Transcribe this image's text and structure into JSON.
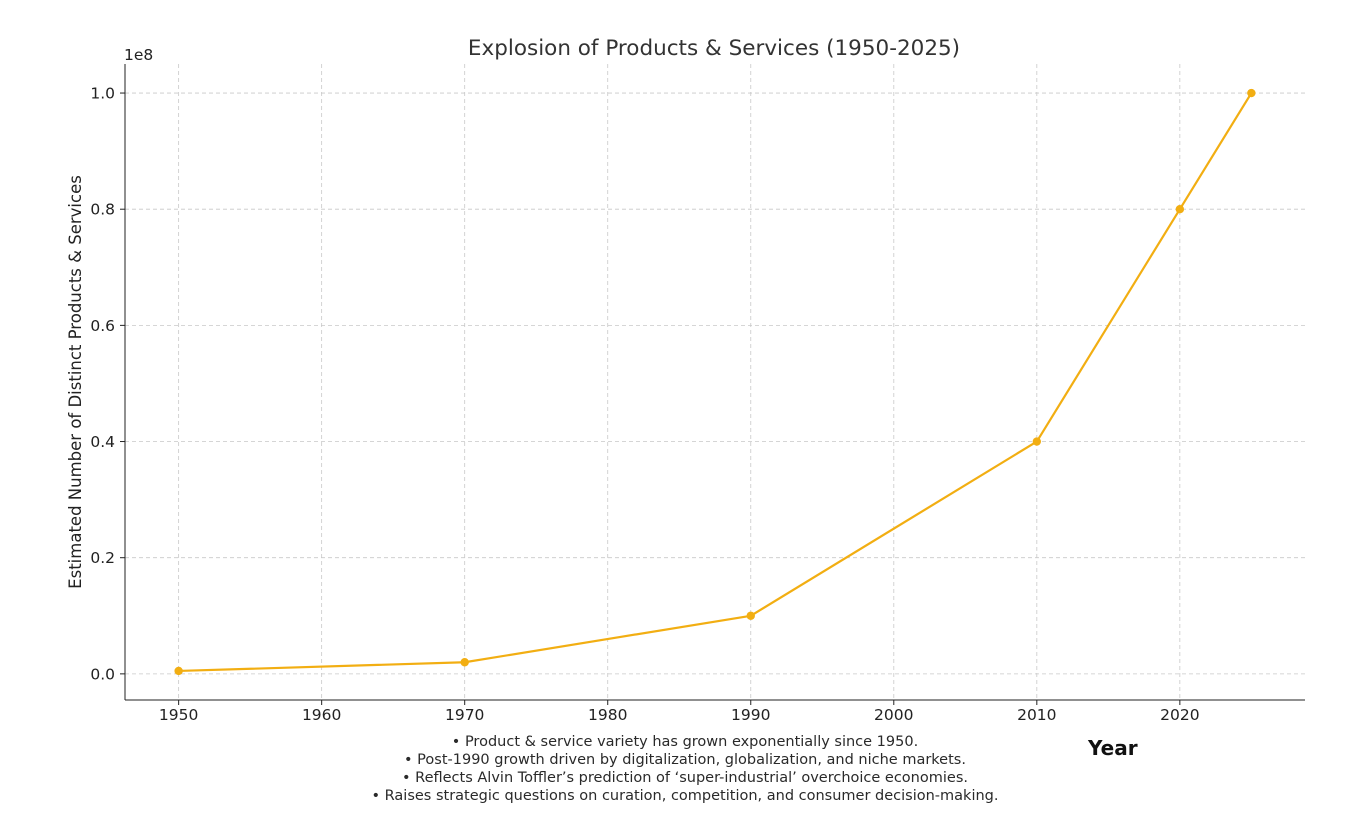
{
  "chart_data": {
    "type": "line",
    "title": "Explosion of Products & Services (1950-2025)",
    "xlabel": "",
    "ylabel": "Estimated Number of Distinct Products & Services",
    "y_offset_label": "1e8",
    "x": [
      1950,
      1970,
      1990,
      2010,
      2020,
      2025
    ],
    "series": [
      {
        "name": "Products & Services",
        "values": [
          500000,
          2000000,
          10000000,
          40000000,
          80000000,
          100000000
        ]
      }
    ],
    "xlim": [
      1946.25,
      2028.75
    ],
    "ylim": [
      -4500000,
      105000000
    ],
    "x_ticks": [
      1950,
      1960,
      1970,
      1980,
      1990,
      2000,
      2010,
      2020
    ],
    "x_tick_labels": [
      "1950",
      "1960",
      "1970",
      "1980",
      "1990",
      "2000",
      "2010",
      "2020"
    ],
    "y_ticks": [
      0,
      20000000,
      40000000,
      60000000,
      80000000,
      100000000
    ],
    "y_tick_labels": [
      "0.0",
      "0.2",
      "0.4",
      "0.6",
      "0.8",
      "1.0"
    ],
    "grid": true,
    "line_color": "#F2AE12"
  },
  "annotations": {
    "year_label": "Year",
    "notes": [
      "• Product & service variety has grown exponentially since 1950.",
      "• Post-1990 growth driven by digitalization, globalization, and niche markets.",
      "• Reflects Alvin Toffler’s prediction of ‘super-industrial’ overchoice economies.",
      "• Raises strategic questions on curation, competition, and consumer decision-making."
    ]
  }
}
